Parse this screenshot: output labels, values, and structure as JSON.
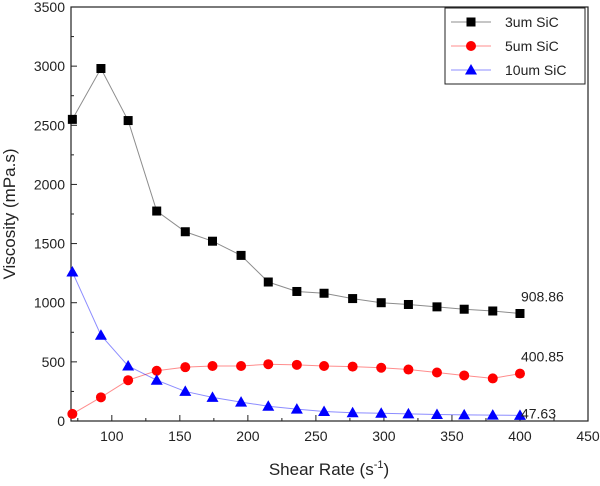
{
  "chart_data": {
    "type": "line",
    "xlabel": "Shear Rate (s",
    "xlabel_sup": "-1",
    "xlabel_end": ")",
    "ylabel": "Viscosity (mPa.s)",
    "xlim": [
      70,
      450
    ],
    "ylim": [
      0,
      3500
    ],
    "xticks": [
      100,
      150,
      200,
      250,
      300,
      350,
      400,
      450
    ],
    "yticks": [
      0,
      500,
      1000,
      1500,
      2000,
      2500,
      3000,
      3500
    ],
    "grid": false,
    "legend_position": "top-right",
    "x": [
      71,
      92,
      112,
      133,
      154,
      174,
      195,
      215,
      236,
      256,
      277,
      298,
      318,
      339,
      359,
      380,
      400
    ],
    "series": [
      {
        "name": "3um SiC",
        "marker": "square",
        "color": "#000000",
        "values": [
          2550,
          2980,
          2540,
          1775,
          1600,
          1520,
          1400,
          1175,
          1095,
          1080,
          1035,
          1000,
          985,
          965,
          945,
          930,
          908.86
        ]
      },
      {
        "name": "5um SiC",
        "marker": "circle",
        "color": "#ff0000",
        "values": [
          60,
          200,
          345,
          425,
          455,
          465,
          465,
          480,
          475,
          465,
          460,
          450,
          435,
          410,
          385,
          360,
          400.85
        ]
      },
      {
        "name": "10um SiC",
        "marker": "triangle",
        "color": "#0000ff",
        "values": [
          1260,
          725,
          465,
          345,
          250,
          200,
          160,
          125,
          100,
          80,
          70,
          65,
          60,
          55,
          52,
          50,
          47.63
        ]
      }
    ],
    "annotations": [
      "908.86",
      "400.85",
      "47.63"
    ]
  }
}
